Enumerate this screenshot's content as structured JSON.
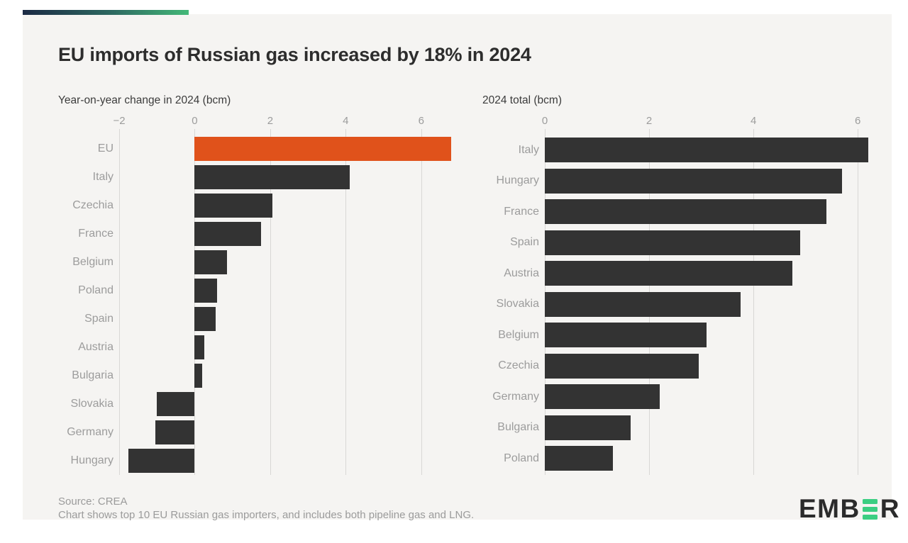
{
  "header": {
    "title": "EU imports of Russian gas increased by 18% in 2024"
  },
  "footer": {
    "source": "Source: CREA",
    "note": "Chart shows top 10 EU Russian gas importers, and includes both pipeline gas and LNG.",
    "logo_prefix": "EMB",
    "logo_suffix": "R"
  },
  "colors": {
    "highlight_orange": "#E0521B",
    "bar_dark": "#333333",
    "card_bg": "#F5F4F2",
    "page_bg": "#FFFFFF",
    "grid": "#D8D7D5",
    "label_gray": "#9C9C9C",
    "title_dark": "#2D2D2D",
    "gradient_start": "#1B2A44",
    "gradient_end": "#43B878",
    "logo_green": "#3BCE82"
  },
  "chart_data": [
    {
      "type": "bar",
      "orientation": "horizontal",
      "title": "Year-on-year change in 2024 (bcm)",
      "categories": [
        "EU",
        "Italy",
        "Czechia",
        "France",
        "Belgium",
        "Poland",
        "Spain",
        "Austria",
        "Bulgaria",
        "Slovakia",
        "Germany",
        "Hungary"
      ],
      "values": [
        6.8,
        4.1,
        2.05,
        1.75,
        0.85,
        0.6,
        0.55,
        0.25,
        0.2,
        -1.0,
        -1.05,
        -1.75
      ],
      "highlight_category": "EU",
      "xlim": [
        -2,
        7
      ],
      "ticks": [
        -2,
        0,
        2,
        4,
        6
      ],
      "grid": true,
      "legend": false,
      "xlabel": "",
      "ylabel": ""
    },
    {
      "type": "bar",
      "orientation": "horizontal",
      "title": "2024 total (bcm)",
      "categories": [
        "Italy",
        "Hungary",
        "France",
        "Spain",
        "Austria",
        "Slovakia",
        "Belgium",
        "Czechia",
        "Germany",
        "Bulgaria",
        "Poland"
      ],
      "values": [
        6.2,
        5.7,
        5.4,
        4.9,
        4.75,
        3.75,
        3.1,
        2.95,
        2.2,
        1.65,
        1.3
      ],
      "highlight_category": null,
      "xlim": [
        0,
        6.5
      ],
      "ticks": [
        0,
        2,
        4,
        6
      ],
      "grid": true,
      "legend": false,
      "xlabel": "",
      "ylabel": ""
    }
  ]
}
